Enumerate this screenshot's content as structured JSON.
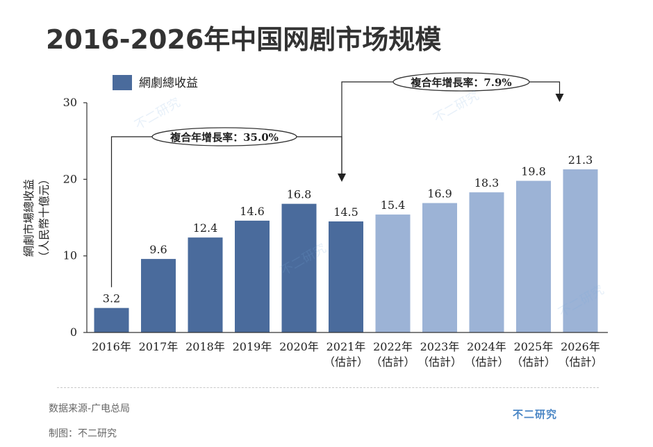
{
  "title": "2016-2026年中国网剧市场规模",
  "legend_label": "網劇總收益",
  "cagr_left_label": "複合年增長率：35.0%",
  "cagr_right_label": "複合年增長率：7.9%",
  "footer": {
    "source": "数据来源-广电总局",
    "maker": "制图：不二研究"
  },
  "brand": "不二研究",
  "watermark": "不二研究",
  "colors": {
    "actual": "#4a6b9c",
    "forecast": "#9cb3d6",
    "legend": "#4a6b9c"
  },
  "chart_data": {
    "type": "bar",
    "categories": [
      "2016年",
      "2017年",
      "2018年",
      "2019年",
      "2020年",
      "2021年",
      "2022年",
      "2023年",
      "2024年",
      "2025年",
      "2026年"
    ],
    "category_sublabels": [
      "",
      "",
      "",
      "",
      "",
      "（估計）",
      "（估計）",
      "（估計）",
      "（估計）",
      "（估計）",
      "（估計）"
    ],
    "values": [
      3.2,
      9.6,
      12.4,
      14.6,
      16.8,
      14.5,
      15.4,
      16.9,
      18.3,
      19.8,
      21.3
    ],
    "value_labels": [
      "3.2",
      "9.6",
      "12.4",
      "14.6",
      "16.8",
      "14.5",
      "15.4",
      "16.9",
      "18.3",
      "19.8",
      "21.3"
    ],
    "forecast_from_index": 6,
    "ylabel_line1": "網劇市場總收益",
    "ylabel_line2": "（人民幣十億元）",
    "ylim": [
      0,
      30
    ],
    "yticks": [
      0,
      10,
      20,
      30
    ],
    "ytick_labels": [
      "0",
      "10",
      "20",
      "30"
    ],
    "legend_position": "top-left",
    "grid": false
  }
}
